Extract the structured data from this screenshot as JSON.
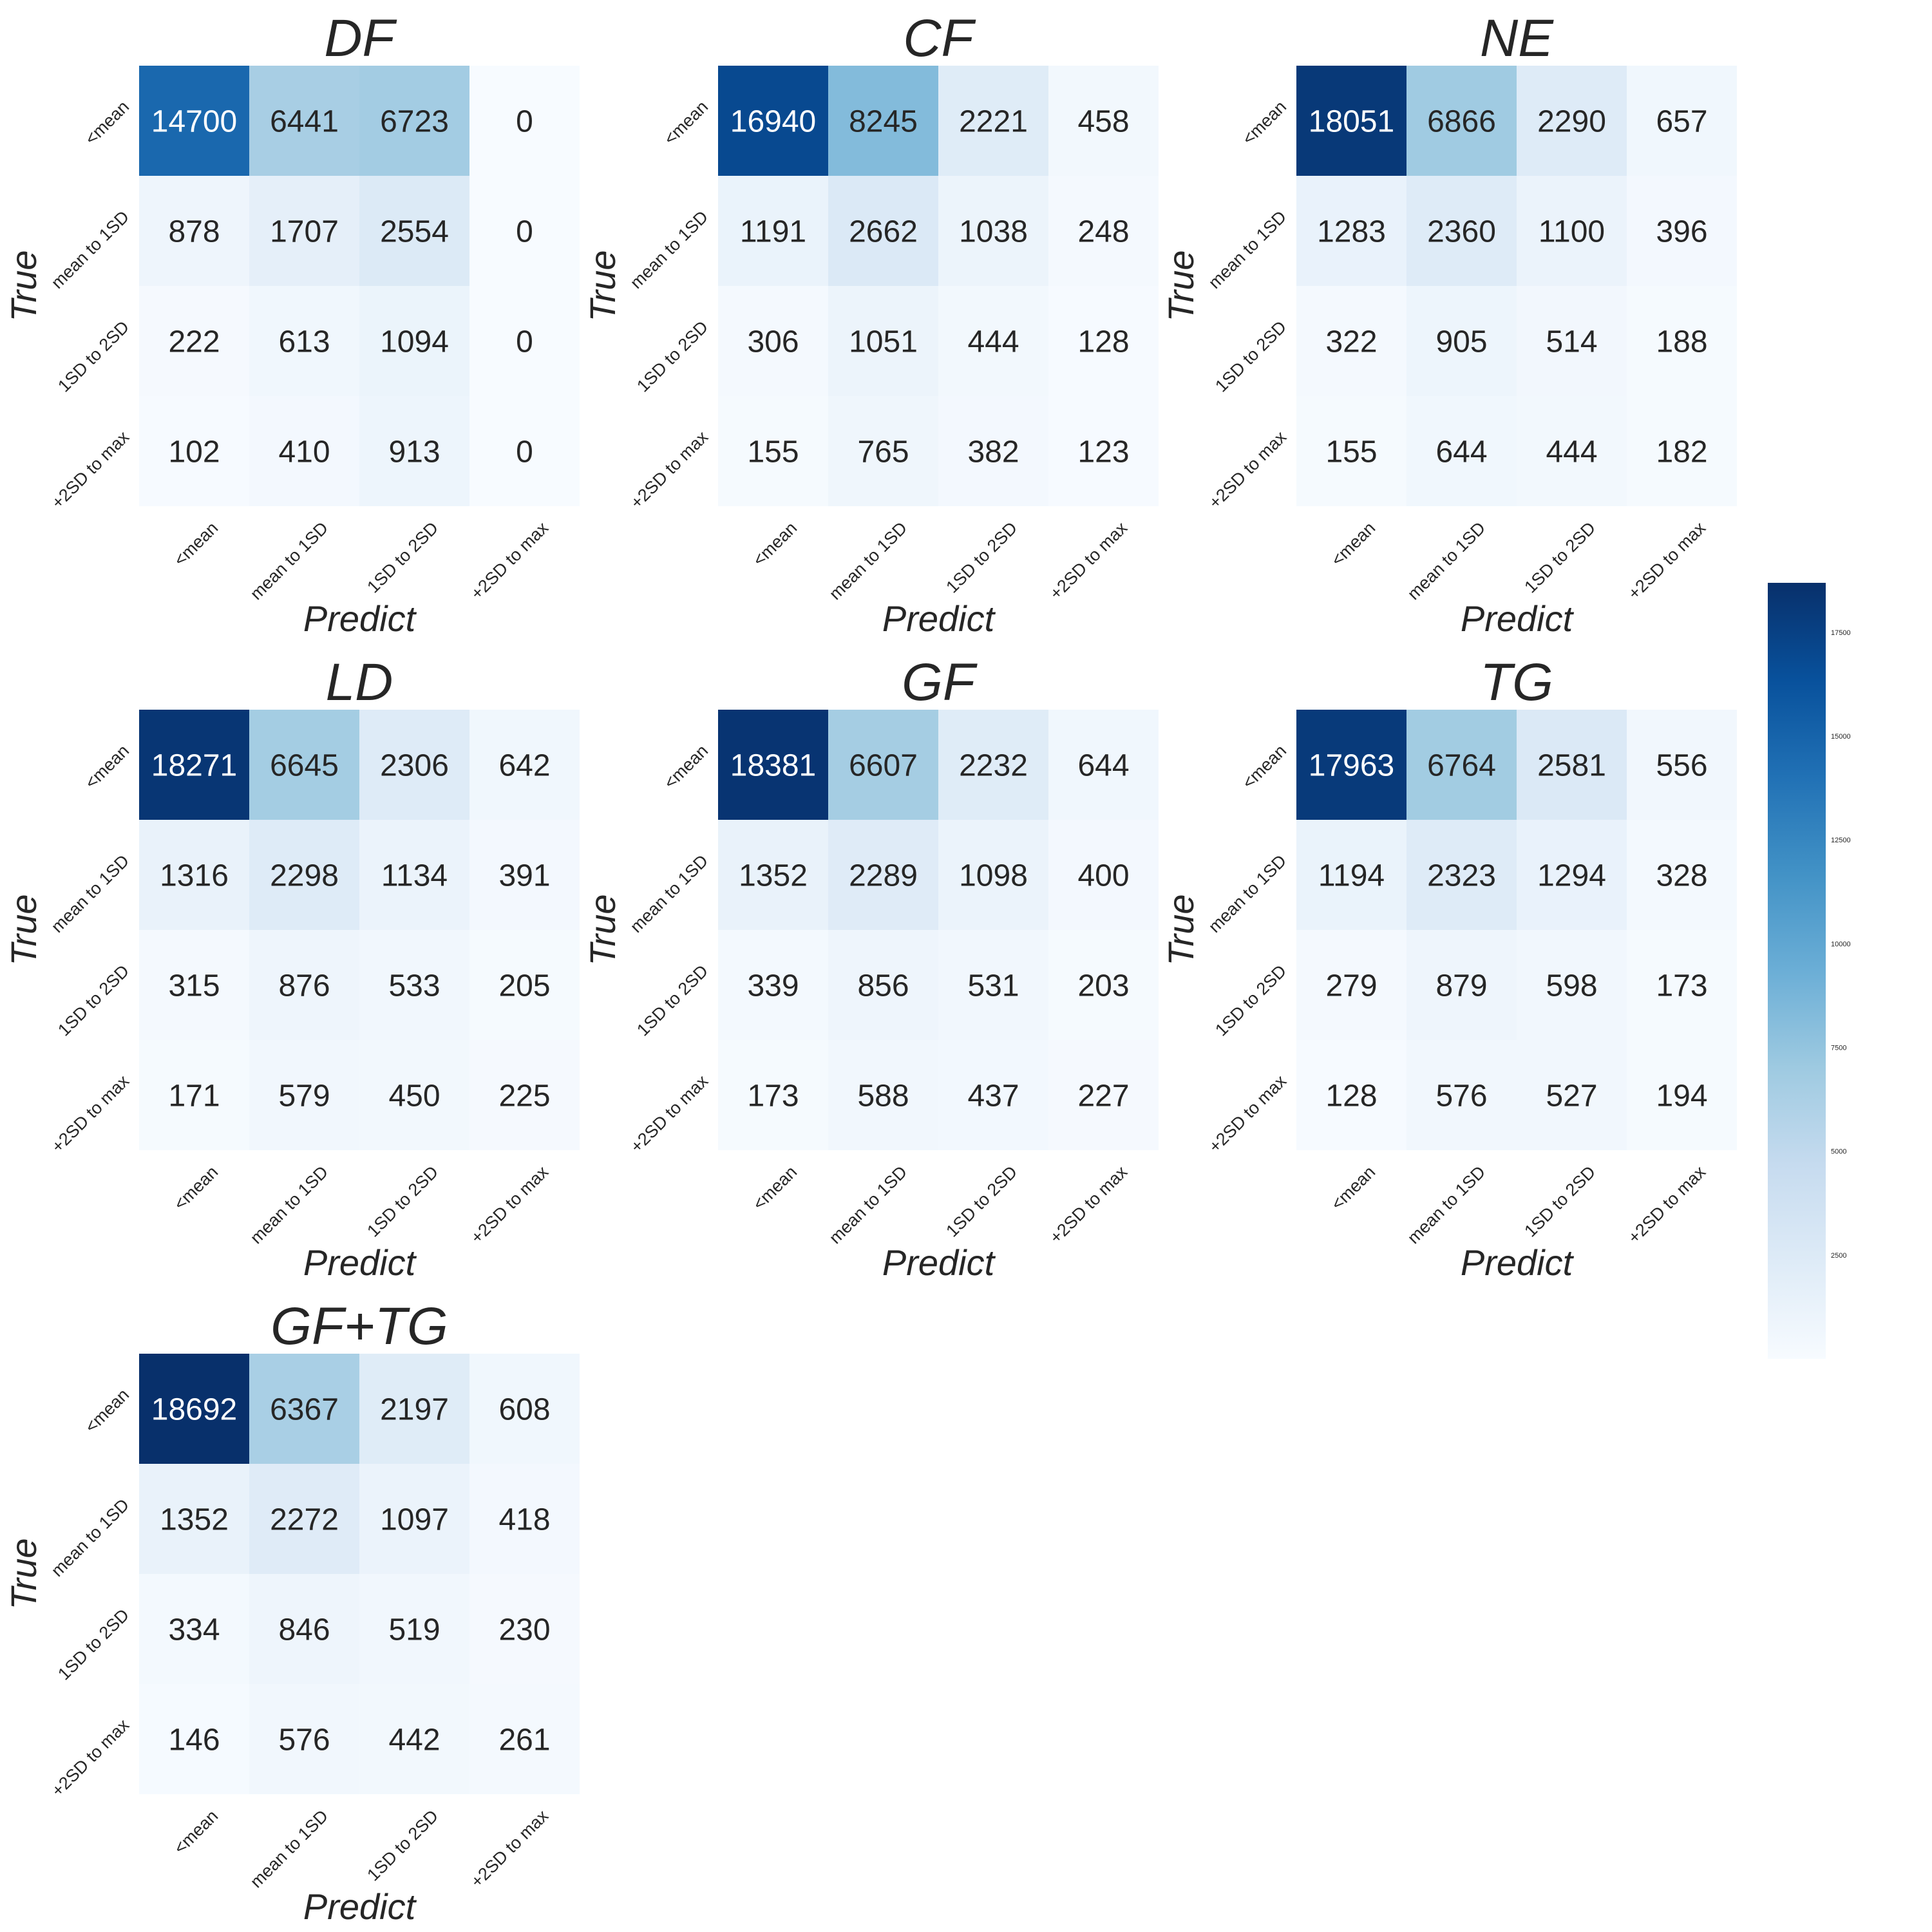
{
  "chart_data": [
    {
      "type": "heatmap",
      "title": "DF",
      "xlabel": "Predict",
      "ylabel": "True",
      "x_categories": [
        "<mean",
        "mean to 1SD",
        "1SD to 2SD",
        "+2SD to max"
      ],
      "y_categories": [
        "<mean",
        "mean to 1SD",
        "1SD to 2SD",
        "+2SD to max"
      ],
      "values": [
        [
          14700,
          6441,
          6723,
          0
        ],
        [
          878,
          1707,
          2554,
          0
        ],
        [
          222,
          613,
          1094,
          0
        ],
        [
          102,
          410,
          913,
          0
        ]
      ]
    },
    {
      "type": "heatmap",
      "title": "CF",
      "xlabel": "Predict",
      "ylabel": "True",
      "x_categories": [
        "<mean",
        "mean to 1SD",
        "1SD to 2SD",
        "+2SD to max"
      ],
      "y_categories": [
        "<mean",
        "mean to 1SD",
        "1SD to 2SD",
        "+2SD to max"
      ],
      "values": [
        [
          16940,
          8245,
          2221,
          458
        ],
        [
          1191,
          2662,
          1038,
          248
        ],
        [
          306,
          1051,
          444,
          128
        ],
        [
          155,
          765,
          382,
          123
        ]
      ]
    },
    {
      "type": "heatmap",
      "title": "NE",
      "xlabel": "Predict",
      "ylabel": "True",
      "x_categories": [
        "<mean",
        "mean to 1SD",
        "1SD to 2SD",
        "+2SD to max"
      ],
      "y_categories": [
        "<mean",
        "mean to 1SD",
        "1SD to 2SD",
        "+2SD to max"
      ],
      "values": [
        [
          18051,
          6866,
          2290,
          657
        ],
        [
          1283,
          2360,
          1100,
          396
        ],
        [
          322,
          905,
          514,
          188
        ],
        [
          155,
          644,
          444,
          182
        ]
      ]
    },
    {
      "type": "heatmap",
      "title": "LD",
      "xlabel": "Predict",
      "ylabel": "True",
      "x_categories": [
        "<mean",
        "mean to 1SD",
        "1SD to 2SD",
        "+2SD to max"
      ],
      "y_categories": [
        "<mean",
        "mean to 1SD",
        "1SD to 2SD",
        "+2SD to max"
      ],
      "values": [
        [
          18271,
          6645,
          2306,
          642
        ],
        [
          1316,
          2298,
          1134,
          391
        ],
        [
          315,
          876,
          533,
          205
        ],
        [
          171,
          579,
          450,
          225
        ]
      ]
    },
    {
      "type": "heatmap",
      "title": "GF",
      "xlabel": "Predict",
      "ylabel": "True",
      "x_categories": [
        "<mean",
        "mean to 1SD",
        "1SD to 2SD",
        "+2SD to max"
      ],
      "y_categories": [
        "<mean",
        "mean to 1SD",
        "1SD to 2SD",
        "+2SD to max"
      ],
      "values": [
        [
          18381,
          6607,
          2232,
          644
        ],
        [
          1352,
          2289,
          1098,
          400
        ],
        [
          339,
          856,
          531,
          203
        ],
        [
          173,
          588,
          437,
          227
        ]
      ]
    },
    {
      "type": "heatmap",
      "title": "TG",
      "xlabel": "Predict",
      "ylabel": "True",
      "x_categories": [
        "<mean",
        "mean to 1SD",
        "1SD to 2SD",
        "+2SD to max"
      ],
      "y_categories": [
        "<mean",
        "mean to 1SD",
        "1SD to 2SD",
        "+2SD to max"
      ],
      "values": [
        [
          17963,
          6764,
          2581,
          556
        ],
        [
          1194,
          2323,
          1294,
          328
        ],
        [
          279,
          879,
          598,
          173
        ],
        [
          128,
          576,
          527,
          194
        ]
      ]
    },
    {
      "type": "heatmap",
      "title": "GF+TG",
      "xlabel": "Predict",
      "ylabel": "True",
      "x_categories": [
        "<mean",
        "mean to 1SD",
        "1SD to 2SD",
        "+2SD to max"
      ],
      "y_categories": [
        "<mean",
        "mean to 1SD",
        "1SD to 2SD",
        "+2SD to max"
      ],
      "values": [
        [
          18692,
          6367,
          2197,
          608
        ],
        [
          1352,
          2272,
          1097,
          418
        ],
        [
          334,
          846,
          519,
          230
        ],
        [
          146,
          576,
          442,
          261
        ]
      ]
    }
  ],
  "colorbar": {
    "colormap": "Blues",
    "vmin": 0,
    "vmax": 18692,
    "ticks": [
      2500,
      5000,
      7500,
      10000,
      12500,
      15000,
      17500
    ],
    "colors": [
      "#f7fbff",
      "#deebf7",
      "#c6dbef",
      "#9ecae1",
      "#6baed6",
      "#4292c6",
      "#2171b5",
      "#08519c",
      "#08306b"
    ]
  }
}
